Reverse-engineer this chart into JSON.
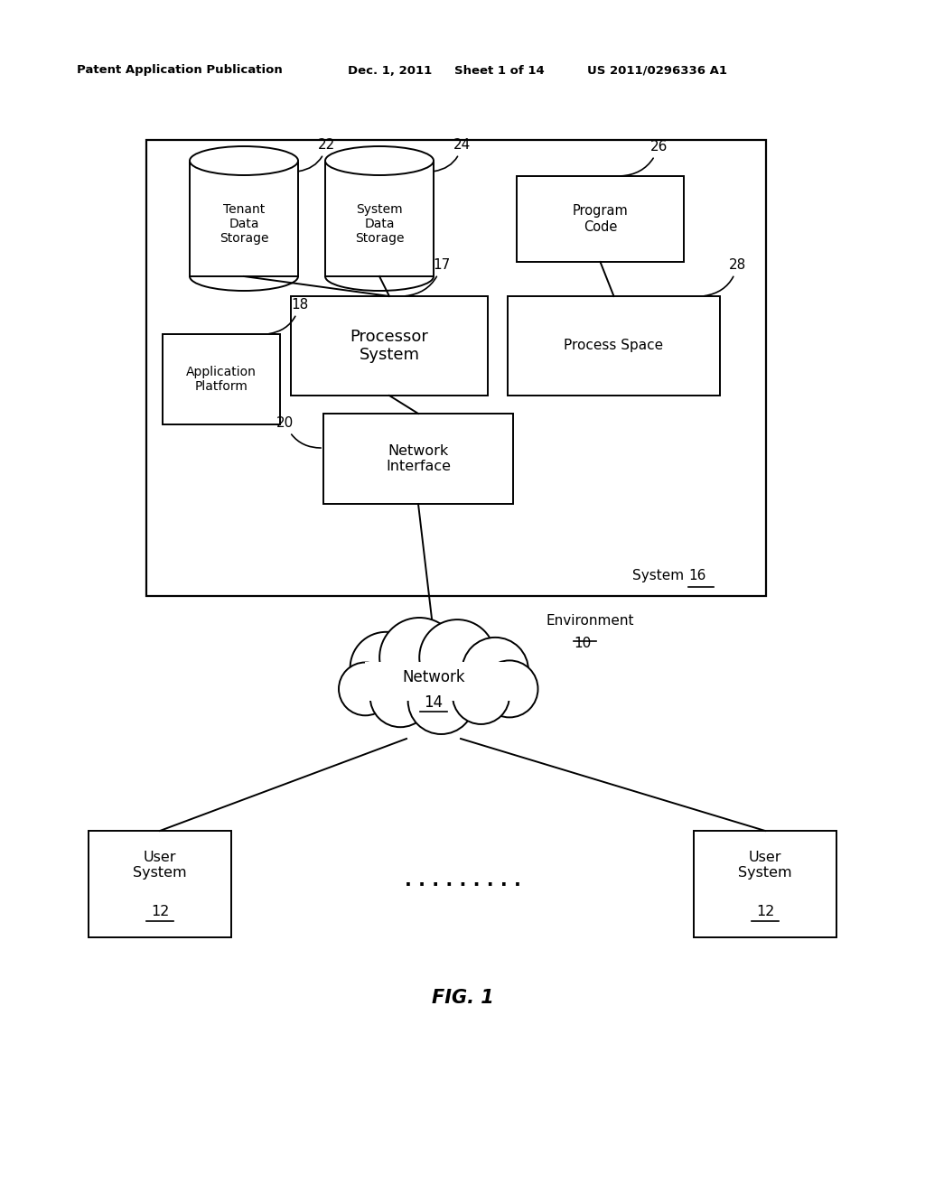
{
  "bg_color": "#ffffff",
  "header_text": "Patent Application Publication",
  "header_date": "Dec. 1, 2011",
  "header_sheet": "Sheet 1 of 14",
  "header_patent": "US 2011/0296336 A1",
  "fig_label": "FIG. 1",
  "lw": 1.4
}
